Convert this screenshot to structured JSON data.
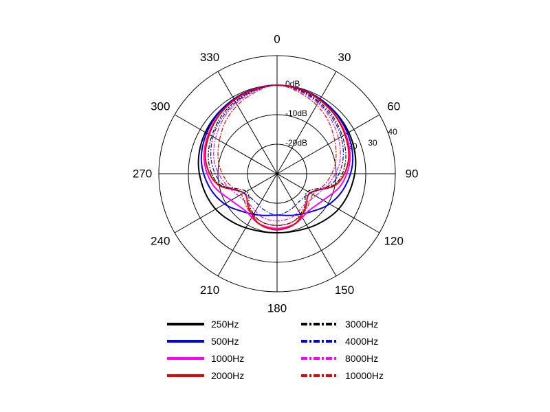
{
  "chart_data": {
    "type": "polar",
    "angle_ticks": [
      "0",
      "30",
      "60",
      "90",
      "120",
      "150",
      "180",
      "210",
      "240",
      "270",
      "300",
      "330"
    ],
    "angle_tick_values": [
      0,
      30,
      60,
      90,
      120,
      150,
      180,
      210,
      240,
      270,
      300,
      330
    ],
    "ring_labels": [
      "0dB",
      "-10dB",
      "-20dB"
    ],
    "ring_values": [
      0,
      -10,
      -20
    ],
    "outer_ring_labels": [
      "20",
      "30",
      "40"
    ],
    "outer_ring_values": [
      20,
      30,
      40
    ],
    "radial_range": [
      -30,
      10
    ],
    "angles_deg": [
      0,
      20,
      40,
      60,
      80,
      100,
      120,
      140,
      160,
      180,
      200,
      220,
      240,
      260,
      280,
      300,
      320,
      340
    ],
    "series": [
      {
        "name": "250Hz",
        "color": "#000000",
        "dash": "solid",
        "values": [
          0,
          -0.4,
          -1.2,
          -2.0,
          -3.0,
          -4.5,
          -6.0,
          -8.0,
          -9.5,
          -10.0,
          -9.5,
          -8.0,
          -6.0,
          -4.5,
          -3.0,
          -2.0,
          -1.2,
          -0.4
        ]
      },
      {
        "name": "500Hz",
        "color": "#0000ee",
        "dash": "solid",
        "values": [
          0,
          -0.4,
          -1.3,
          -2.5,
          -4.0,
          -6.5,
          -9.5,
          -13.0,
          -15.0,
          -16.0,
          -15.0,
          -13.0,
          -9.5,
          -6.5,
          -4.0,
          -2.5,
          -1.3,
          -0.4
        ]
      },
      {
        "name": "1000Hz",
        "color": "#ff00ff",
        "dash": "solid",
        "values": [
          0,
          -0.6,
          -1.8,
          -3.2,
          -5.0,
          -8.0,
          -12.0,
          -13.5,
          -12.0,
          -11.5,
          -12.0,
          -13.5,
          -12.0,
          -8.0,
          -5.0,
          -3.2,
          -1.8,
          -0.6
        ]
      },
      {
        "name": "2000Hz",
        "color": "#ee0000",
        "dash": "solid",
        "values": [
          0,
          -0.6,
          -1.8,
          -3.5,
          -5.5,
          -9.5,
          -17.0,
          -15.0,
          -12.0,
          -11.0,
          -12.0,
          -15.0,
          -17.0,
          -9.5,
          -5.5,
          -3.5,
          -1.8,
          -0.6
        ]
      },
      {
        "name": "3000Hz",
        "color": "#000000",
        "dash": "dashdot",
        "values": [
          0,
          -1.0,
          -2.5,
          -4.5,
          -6.5,
          -10.0,
          -18.0,
          -15.5,
          -13.0,
          -12.5,
          -13.0,
          -15.5,
          -18.0,
          -10.0,
          -6.5,
          -4.5,
          -2.5,
          -1.0
        ]
      },
      {
        "name": "4000Hz",
        "color": "#0000ee",
        "dash": "dashdot",
        "values": [
          0,
          -1.2,
          -3.0,
          -5.0,
          -7.5,
          -11.0,
          -17.0,
          -18.0,
          -17.0,
          -16.0,
          -17.0,
          -18.0,
          -17.0,
          -11.0,
          -7.5,
          -5.0,
          -3.0,
          -1.2
        ]
      },
      {
        "name": "8000Hz",
        "color": "#ff00ff",
        "dash": "dashdot",
        "values": [
          0,
          -1.5,
          -3.5,
          -6.0,
          -8.5,
          -12.0,
          -15.0,
          -16.0,
          -14.5,
          -14.0,
          -14.5,
          -16.0,
          -15.0,
          -12.0,
          -8.5,
          -6.0,
          -3.5,
          -1.5
        ]
      },
      {
        "name": "10000Hz",
        "color": "#ee0000",
        "dash": "dashdot",
        "values": [
          0,
          -2.0,
          -4.5,
          -7.5,
          -10.0,
          -13.0,
          -16.0,
          -14.5,
          -13.0,
          -12.5,
          -13.0,
          -14.5,
          -16.0,
          -13.0,
          -10.0,
          -7.5,
          -4.5,
          -2.0
        ]
      }
    ],
    "legend_placement": "bottom",
    "grid": true
  }
}
